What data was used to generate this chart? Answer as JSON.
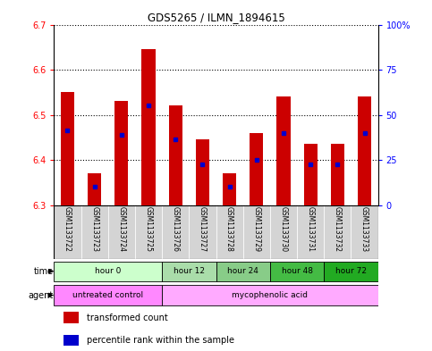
{
  "title": "GDS5265 / ILMN_1894615",
  "samples": [
    "GSM1133722",
    "GSM1133723",
    "GSM1133724",
    "GSM1133725",
    "GSM1133726",
    "GSM1133727",
    "GSM1133728",
    "GSM1133729",
    "GSM1133730",
    "GSM1133731",
    "GSM1133732",
    "GSM1133733"
  ],
  "bar_bottoms": [
    6.3,
    6.3,
    6.3,
    6.3,
    6.3,
    6.3,
    6.3,
    6.3,
    6.3,
    6.3,
    6.3,
    6.3
  ],
  "bar_tops": [
    6.55,
    6.37,
    6.53,
    6.645,
    6.52,
    6.445,
    6.37,
    6.46,
    6.54,
    6.435,
    6.435,
    6.54
  ],
  "percentile_values": [
    6.465,
    6.34,
    6.455,
    6.52,
    6.445,
    6.39,
    6.34,
    6.4,
    6.46,
    6.39,
    6.39,
    6.46
  ],
  "ylim": [
    6.3,
    6.7
  ],
  "yticks": [
    6.3,
    6.4,
    6.5,
    6.6,
    6.7
  ],
  "y2ticks_pct": [
    0,
    25,
    50,
    75,
    100
  ],
  "y2labels": [
    "0",
    "25",
    "50",
    "75",
    "100%"
  ],
  "bar_color": "#cc0000",
  "percentile_color": "#0000cc",
  "time_groups": [
    {
      "label": "hour 0",
      "start": 0,
      "end": 4,
      "color": "#ccffcc"
    },
    {
      "label": "hour 12",
      "start": 4,
      "end": 6,
      "color": "#aaddaa"
    },
    {
      "label": "hour 24",
      "start": 6,
      "end": 8,
      "color": "#88cc88"
    },
    {
      "label": "hour 48",
      "start": 8,
      "end": 10,
      "color": "#44bb44"
    },
    {
      "label": "hour 72",
      "start": 10,
      "end": 12,
      "color": "#22aa22"
    }
  ],
  "agent_groups": [
    {
      "label": "untreated control",
      "start": 0,
      "end": 4,
      "color": "#ff88ff"
    },
    {
      "label": "mycophenolic acid",
      "start": 4,
      "end": 12,
      "color": "#ffaaff"
    }
  ],
  "legend_items": [
    {
      "color": "#cc0000",
      "label": "transformed count"
    },
    {
      "color": "#0000cc",
      "label": "percentile rank within the sample"
    }
  ],
  "sample_bg_color": "#d4d4d4",
  "bar_width": 0.5
}
